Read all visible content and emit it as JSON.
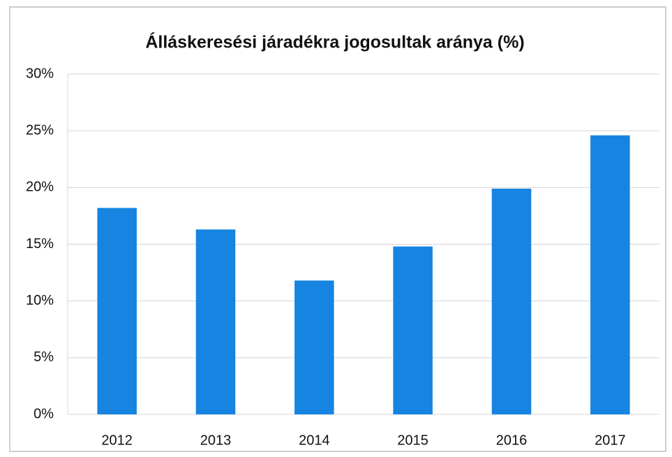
{
  "chart_data": {
    "type": "bar",
    "title": "Álláskeresési járadékra jogosultak aránya (%)",
    "categories": [
      "2012",
      "2013",
      "2014",
      "2015",
      "2016",
      "2017"
    ],
    "values": [
      18.2,
      16.3,
      11.8,
      14.8,
      19.9,
      24.6
    ],
    "color": "#1684e0",
    "ylim": [
      0,
      30
    ],
    "yticks": [
      {
        "value": 0,
        "label": "0%"
      },
      {
        "value": 5,
        "label": "5%"
      },
      {
        "value": 10,
        "label": "10%"
      },
      {
        "value": 15,
        "label": "15%"
      },
      {
        "value": 20,
        "label": "20%"
      },
      {
        "value": 25,
        "label": "25%"
      },
      {
        "value": 30,
        "label": "30%"
      }
    ],
    "grid": true
  }
}
